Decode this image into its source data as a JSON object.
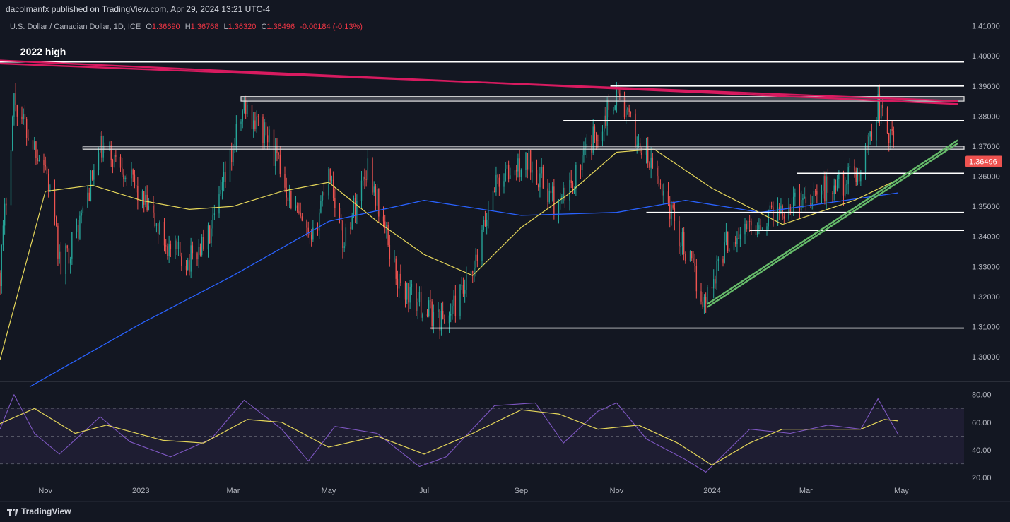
{
  "header": {
    "publisher_line": "dacolmanfx published on TradingView.com, Apr 29, 2024 13:21 UTC-4"
  },
  "legend": {
    "symbol": "U.S. Dollar / Canadian Dollar, 1D, ICE",
    "open_label": "O",
    "open": "1.36690",
    "high_label": "H",
    "high": "1.36768",
    "low_label": "L",
    "low": "1.36320",
    "close_label": "C",
    "close": "1.36496",
    "change": "-0.00184 (-0.13%)"
  },
  "branding": {
    "logo_text": "TradingView"
  },
  "colors": {
    "background": "#131722",
    "up": "#26a69a",
    "down": "#ef5350",
    "resistance": "#d81b60",
    "support_trend": "#66bb6a",
    "ma50": "#e5d65a",
    "ma200": "#2962ff",
    "rsi": "#7e57c2",
    "rsi_ma": "#e5d65a"
  },
  "chart_data": [
    {
      "type": "candlestick",
      "title": "U.S. Dollar / Canadian Dollar, 1D, ICE",
      "x_range": [
        "2022-10-03",
        "2024-06-10"
      ],
      "x_ticks": [
        {
          "date": "2022-11-01",
          "label": "Nov"
        },
        {
          "date": "2023-01-01",
          "label": "2023"
        },
        {
          "date": "2023-03-01",
          "label": "Mar"
        },
        {
          "date": "2023-05-01",
          "label": "May"
        },
        {
          "date": "2023-07-01",
          "label": "Jul"
        },
        {
          "date": "2023-09-01",
          "label": "Sep"
        },
        {
          "date": "2023-11-01",
          "label": "Nov"
        },
        {
          "date": "2024-01-01",
          "label": "2024"
        },
        {
          "date": "2024-03-01",
          "label": "Mar"
        },
        {
          "date": "2024-05-01",
          "label": "May"
        }
      ],
      "ylim": [
        1.2925,
        1.4125
      ],
      "y_ticks": [
        "1.30000",
        "1.31000",
        "1.32000",
        "1.33000",
        "1.34000",
        "1.35000",
        "1.36000",
        "1.37000",
        "1.38000",
        "1.39000",
        "1.40000",
        "1.41000"
      ],
      "last_price": "1.36496",
      "price_path": [
        {
          "date": "2022-10-03",
          "close": 1.328
        },
        {
          "date": "2022-10-12",
          "close": 1.386
        },
        {
          "date": "2022-10-21",
          "close": 1.374
        },
        {
          "date": "2022-11-01",
          "close": 1.364
        },
        {
          "date": "2022-11-11",
          "close": 1.329
        },
        {
          "date": "2022-11-22",
          "close": 1.343
        },
        {
          "date": "2022-12-06",
          "close": 1.369
        },
        {
          "date": "2022-12-20",
          "close": 1.364
        },
        {
          "date": "2023-01-06",
          "close": 1.348
        },
        {
          "date": "2023-01-20",
          "close": 1.335
        },
        {
          "date": "2023-02-01",
          "close": 1.332
        },
        {
          "date": "2023-02-15",
          "close": 1.341
        },
        {
          "date": "2023-03-08",
          "close": 1.383
        },
        {
          "date": "2023-03-24",
          "close": 1.372
        },
        {
          "date": "2023-04-10",
          "close": 1.348
        },
        {
          "date": "2023-04-20",
          "close": 1.336
        },
        {
          "date": "2023-05-01",
          "close": 1.364
        },
        {
          "date": "2023-05-10",
          "close": 1.338
        },
        {
          "date": "2023-05-26",
          "close": 1.364
        },
        {
          "date": "2023-06-15",
          "close": 1.324
        },
        {
          "date": "2023-07-01",
          "close": 1.316
        },
        {
          "date": "2023-07-14",
          "close": 1.312
        },
        {
          "date": "2023-08-01",
          "close": 1.326
        },
        {
          "date": "2023-08-15",
          "close": 1.358
        },
        {
          "date": "2023-09-07",
          "close": 1.365
        },
        {
          "date": "2023-09-25",
          "close": 1.349
        },
        {
          "date": "2023-10-13",
          "close": 1.368
        },
        {
          "date": "2023-11-01",
          "close": 1.388
        },
        {
          "date": "2023-11-14",
          "close": 1.372
        },
        {
          "date": "2023-12-01",
          "close": 1.355
        },
        {
          "date": "2023-12-27",
          "close": 1.318
        },
        {
          "date": "2024-01-10",
          "close": 1.338
        },
        {
          "date": "2024-02-01",
          "close": 1.345
        },
        {
          "date": "2024-02-15",
          "close": 1.35
        },
        {
          "date": "2024-03-08",
          "close": 1.355
        },
        {
          "date": "2024-03-25",
          "close": 1.358
        },
        {
          "date": "2024-04-05",
          "close": 1.362
        },
        {
          "date": "2024-04-16",
          "close": 1.384
        },
        {
          "date": "2024-04-29",
          "close": 1.365
        }
      ],
      "ma50": [
        {
          "date": "2022-10-03",
          "value": 1.299
        },
        {
          "date": "2022-11-01",
          "value": 1.355
        },
        {
          "date": "2022-12-01",
          "value": 1.357
        },
        {
          "date": "2023-01-01",
          "value": 1.352
        },
        {
          "date": "2023-02-01",
          "value": 1.349
        },
        {
          "date": "2023-03-01",
          "value": 1.35
        },
        {
          "date": "2023-04-01",
          "value": 1.355
        },
        {
          "date": "2023-05-01",
          "value": 1.358
        },
        {
          "date": "2023-06-01",
          "value": 1.345
        },
        {
          "date": "2023-07-01",
          "value": 1.334
        },
        {
          "date": "2023-08-01",
          "value": 1.327
        },
        {
          "date": "2023-09-01",
          "value": 1.343
        },
        {
          "date": "2023-10-01",
          "value": 1.354
        },
        {
          "date": "2023-11-01",
          "value": 1.368
        },
        {
          "date": "2023-11-25",
          "value": 1.369
        },
        {
          "date": "2024-01-01",
          "value": 1.356
        },
        {
          "date": "2024-02-15",
          "value": 1.344
        },
        {
          "date": "2024-04-01",
          "value": 1.352
        },
        {
          "date": "2024-04-29",
          "value": 1.359
        }
      ],
      "ma200": [
        {
          "date": "2022-10-22",
          "value": 1.29
        },
        {
          "date": "2023-01-01",
          "value": 1.311
        },
        {
          "date": "2023-03-01",
          "value": 1.327
        },
        {
          "date": "2023-05-01",
          "value": 1.345
        },
        {
          "date": "2023-07-01",
          "value": 1.352
        },
        {
          "date": "2023-09-01",
          "value": 1.347
        },
        {
          "date": "2023-11-01",
          "value": 1.348
        },
        {
          "date": "2023-12-15",
          "value": 1.352
        },
        {
          "date": "2024-02-01",
          "value": 1.348
        },
        {
          "date": "2024-04-29",
          "value": 1.3545
        }
      ],
      "horizontal_levels": [
        {
          "price": 1.398,
          "from": "2022-10-03",
          "to": "2024-06-10"
        },
        {
          "price": 1.39,
          "from": "2023-10-28",
          "to": "2024-06-10"
        },
        {
          "price": 1.3785,
          "from": "2023-09-28",
          "to": "2024-06-10"
        },
        {
          "price": 1.361,
          "from": "2024-02-24",
          "to": "2024-06-10"
        },
        {
          "price": 1.348,
          "from": "2023-11-20",
          "to": "2024-06-10"
        },
        {
          "price": 1.342,
          "from": "2024-01-25",
          "to": "2024-06-10"
        },
        {
          "price": 1.3095,
          "from": "2023-07-05",
          "to": "2024-06-10"
        }
      ],
      "zones": [
        {
          "from_price": 1.385,
          "to_price": 1.3865,
          "from": "2023-03-06",
          "to": "2024-06-10"
        },
        {
          "from_price": 1.369,
          "to_price": 1.37,
          "from": "2022-11-25",
          "to": "2024-06-10"
        }
      ],
      "trendlines": [
        {
          "role": "resistance",
          "from": {
            "date": "2022-10-03",
            "price": 1.3985
          },
          "to": {
            "date": "2024-06-06",
            "price": 1.384
          }
        },
        {
          "role": "resistance",
          "from": {
            "date": "2022-10-03",
            "price": 1.3975
          },
          "to": {
            "date": "2024-06-06",
            "price": 1.385
          }
        },
        {
          "role": "support",
          "from": {
            "date": "2023-12-29",
            "price": 1.3175
          },
          "to": {
            "date": "2024-06-06",
            "price": 1.372
          }
        },
        {
          "role": "support",
          "from": {
            "date": "2023-12-29",
            "price": 1.3165
          },
          "to": {
            "date": "2024-06-06",
            "price": 1.371
          }
        }
      ],
      "annotations": [
        {
          "text": "2022 high",
          "date": "2022-10-16",
          "price": 1.4003
        }
      ]
    },
    {
      "type": "line",
      "title": "",
      "ylim": [
        15,
        88
      ],
      "y_ticks": [
        "20.00",
        "40.00",
        "60.00",
        "80.00"
      ],
      "band": [
        30,
        70
      ],
      "rsi": [
        {
          "date": "2022-10-03",
          "value": 55
        },
        {
          "date": "2022-10-12",
          "value": 80
        },
        {
          "date": "2022-10-25",
          "value": 52
        },
        {
          "date": "2022-11-10",
          "value": 37
        },
        {
          "date": "2022-12-06",
          "value": 64
        },
        {
          "date": "2022-12-25",
          "value": 46
        },
        {
          "date": "2023-01-20",
          "value": 35
        },
        {
          "date": "2023-02-15",
          "value": 48
        },
        {
          "date": "2023-03-08",
          "value": 76
        },
        {
          "date": "2023-04-01",
          "value": 55
        },
        {
          "date": "2023-04-18",
          "value": 32
        },
        {
          "date": "2023-05-05",
          "value": 57
        },
        {
          "date": "2023-06-01",
          "value": 52
        },
        {
          "date": "2023-06-28",
          "value": 28
        },
        {
          "date": "2023-07-15",
          "value": 35
        },
        {
          "date": "2023-08-15",
          "value": 72
        },
        {
          "date": "2023-09-10",
          "value": 74
        },
        {
          "date": "2023-09-28",
          "value": 45
        },
        {
          "date": "2023-10-20",
          "value": 68
        },
        {
          "date": "2023-11-01",
          "value": 74
        },
        {
          "date": "2023-11-20",
          "value": 48
        },
        {
          "date": "2023-12-15",
          "value": 33
        },
        {
          "date": "2023-12-28",
          "value": 24
        },
        {
          "date": "2024-01-25",
          "value": 55
        },
        {
          "date": "2024-02-20",
          "value": 52
        },
        {
          "date": "2024-03-15",
          "value": 58
        },
        {
          "date": "2024-04-05",
          "value": 55
        },
        {
          "date": "2024-04-16",
          "value": 77
        },
        {
          "date": "2024-04-29",
          "value": 51
        }
      ],
      "rsi_ma": [
        {
          "date": "2022-10-03",
          "value": 59
        },
        {
          "date": "2022-10-25",
          "value": 70
        },
        {
          "date": "2022-11-20",
          "value": 52
        },
        {
          "date": "2022-12-10",
          "value": 58
        },
        {
          "date": "2023-01-15",
          "value": 47
        },
        {
          "date": "2023-02-10",
          "value": 45
        },
        {
          "date": "2023-03-10",
          "value": 62
        },
        {
          "date": "2023-04-01",
          "value": 60
        },
        {
          "date": "2023-05-01",
          "value": 42
        },
        {
          "date": "2023-06-01",
          "value": 50
        },
        {
          "date": "2023-07-01",
          "value": 37
        },
        {
          "date": "2023-08-01",
          "value": 52
        },
        {
          "date": "2023-09-01",
          "value": 69
        },
        {
          "date": "2023-09-25",
          "value": 66
        },
        {
          "date": "2023-10-20",
          "value": 55
        },
        {
          "date": "2023-11-15",
          "value": 58
        },
        {
          "date": "2023-12-10",
          "value": 45
        },
        {
          "date": "2024-01-01",
          "value": 29
        },
        {
          "date": "2024-01-25",
          "value": 45
        },
        {
          "date": "2024-02-15",
          "value": 55
        },
        {
          "date": "2024-03-15",
          "value": 55
        },
        {
          "date": "2024-04-05",
          "value": 55
        },
        {
          "date": "2024-04-20",
          "value": 62
        },
        {
          "date": "2024-04-29",
          "value": 61
        }
      ]
    }
  ]
}
